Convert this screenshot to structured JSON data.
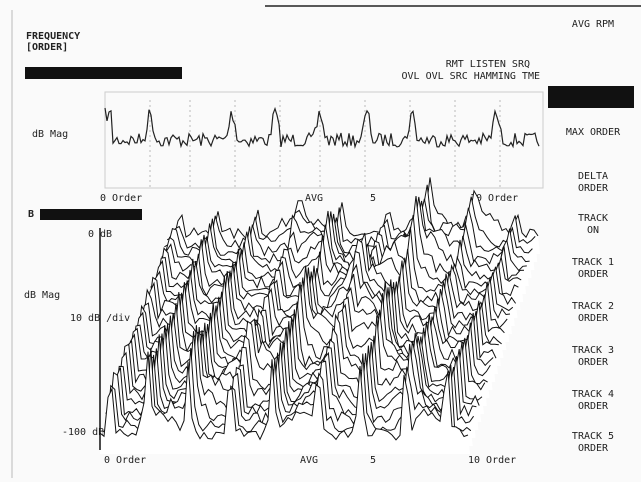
{
  "header": {
    "title": "FREQUENCY",
    "subtitle": "[ORDER]"
  },
  "status": {
    "line1": "RMT LISTEN SRQ",
    "line2": "OVL OVL SRC HAMMING TME"
  },
  "top_trace": {
    "y_label": "dB Mag",
    "x_start": "0 Order",
    "x_mid": "AVG",
    "x_five": "5",
    "x_end": "10 Order"
  },
  "waterfall": {
    "y_top": "0 dB",
    "y_label": "dB Mag",
    "y_scale": "10 dB /div",
    "y_bottom": "-100 dB",
    "x_start": "0 Order",
    "x_mid": "AVG",
    "x_five": "5",
    "x_end": "10 Order"
  },
  "menu": [
    {
      "lines": [
        "AVG RPM"
      ]
    },
    {
      "lines": [
        "MAX ORDER"
      ]
    },
    {
      "lines": [
        "DELTA",
        "ORDER"
      ]
    },
    {
      "lines": [
        "TRACK",
        "ON"
      ]
    },
    {
      "lines": [
        "TRACK 1",
        "ORDER"
      ]
    },
    {
      "lines": [
        "TRACK 2",
        "ORDER"
      ]
    },
    {
      "lines": [
        "TRACK 3",
        "ORDER"
      ]
    },
    {
      "lines": [
        "TRACK 4",
        "ORDER"
      ]
    },
    {
      "lines": [
        "TRACK 5",
        "ORDER"
      ]
    }
  ]
}
